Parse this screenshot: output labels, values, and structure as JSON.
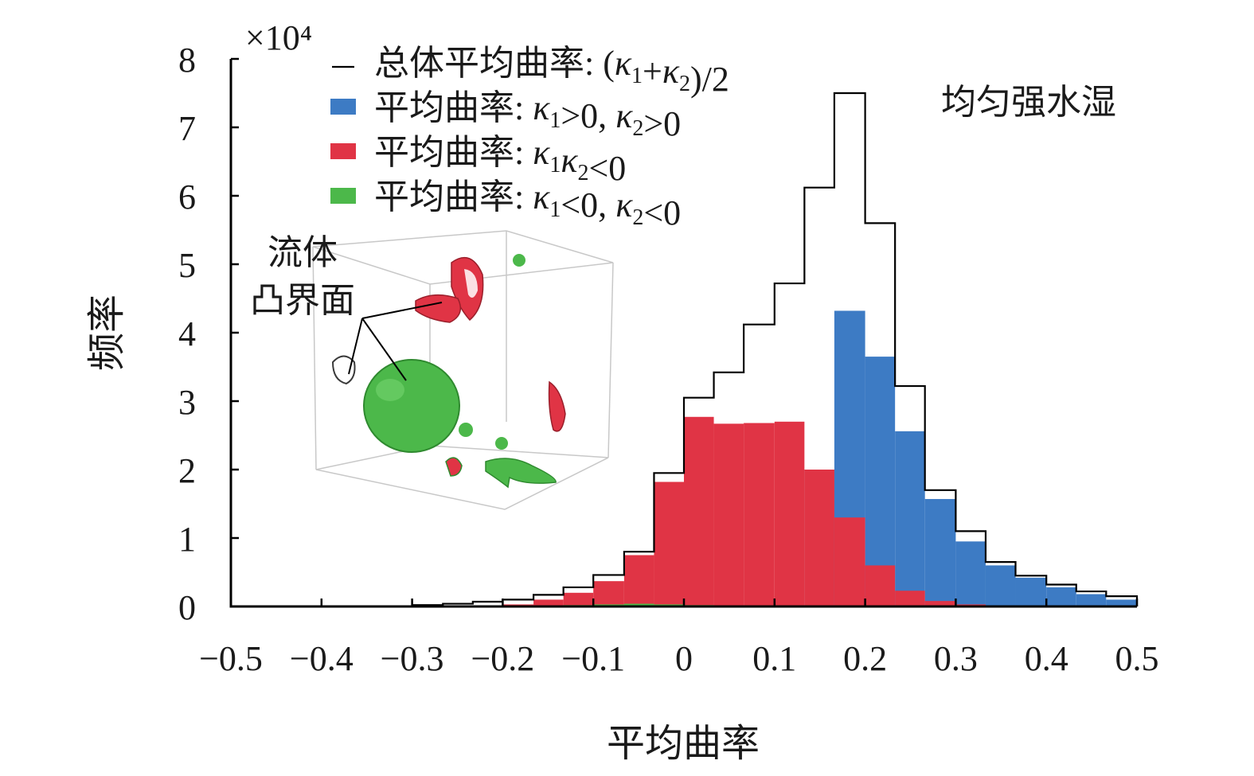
{
  "chart_data": {
    "type": "histogram",
    "xlabel": "平均曲率",
    "ylabel": "频率",
    "y_scale_label": "×10⁴",
    "xlim": [
      -0.5,
      0.5
    ],
    "ylim": [
      0,
      8
    ],
    "y_ticks": [
      0,
      1,
      2,
      3,
      4,
      5,
      6,
      7,
      8
    ],
    "y_tick_labels": [
      "0",
      "1",
      "2",
      "3",
      "4",
      "5",
      "6",
      "7",
      "8"
    ],
    "x_ticks": [
      -0.5,
      -0.4,
      -0.3,
      -0.2,
      -0.1,
      0,
      0.1,
      0.2,
      0.3,
      0.4,
      0.5
    ],
    "x_tick_labels": [
      "−0.5",
      "−0.4",
      "−0.3",
      "−0.2",
      "−0.1",
      "0",
      "0.1",
      "0.2",
      "0.3",
      "0.4",
      "0.5"
    ],
    "bin_edges": [
      -0.5,
      -0.466,
      -0.433,
      -0.4,
      -0.366,
      -0.333,
      -0.3,
      -0.266,
      -0.233,
      -0.2,
      -0.166,
      -0.133,
      -0.1,
      -0.066,
      -0.033,
      0,
      0.033,
      0.066,
      0.1,
      0.133,
      0.166,
      0.2,
      0.233,
      0.266,
      0.3,
      0.333,
      0.366,
      0.4,
      0.433,
      0.466,
      0.5
    ],
    "series": [
      {
        "name": "总体平均曲率: (κ1+κ2)/2",
        "color": "#000000",
        "style": "step",
        "values": [
          0,
          0,
          0,
          0,
          0,
          0,
          0.02,
          0.04,
          0.07,
          0.1,
          0.17,
          0.28,
          0.46,
          0.8,
          1.95,
          3.05,
          3.42,
          4.12,
          4.72,
          6.12,
          7.5,
          5.6,
          3.22,
          1.7,
          1.1,
          0.65,
          0.45,
          0.32,
          0.22,
          0.15
        ]
      },
      {
        "name": "平均曲率: κ1>0, κ2>0",
        "color": "#3d7bc4",
        "style": "filled",
        "values": [
          0,
          0,
          0,
          0,
          0,
          0,
          0,
          0,
          0,
          0,
          0,
          0,
          0,
          0,
          0,
          0,
          0,
          0,
          0,
          2.0,
          4.32,
          3.65,
          2.56,
          1.57,
          0.95,
          0.6,
          0.42,
          0.28,
          0.18,
          0.1
        ]
      },
      {
        "name": "平均曲率: κ1κ2<0",
        "color": "#e03445",
        "style": "filled",
        "values": [
          0,
          0,
          0,
          0,
          0,
          0,
          0,
          0,
          0,
          0.03,
          0.1,
          0.2,
          0.37,
          0.75,
          1.82,
          2.77,
          2.67,
          2.68,
          2.7,
          2.0,
          1.3,
          0.6,
          0.23,
          0.08,
          0.03,
          0.01,
          0,
          0,
          0,
          0
        ]
      },
      {
        "name": "平均曲率: κ1<0, κ2<0",
        "color": "#4cb84a",
        "style": "filled",
        "values": [
          0,
          0,
          0,
          0,
          0,
          0,
          0,
          0,
          0,
          0,
          0.01,
          0.02,
          0.03,
          0.04,
          0.03,
          0.02,
          0.01,
          0,
          0,
          0,
          0,
          0,
          0,
          0,
          0,
          0,
          0,
          0,
          0,
          0
        ]
      }
    ],
    "legend": {
      "placement": "top-left",
      "entries": [
        {
          "symbol": "line",
          "parts": [
            "总体平均曲率: (",
            "κ",
            "1",
            "+",
            "κ",
            "2",
            ")/2"
          ]
        },
        {
          "symbol": "box",
          "parts": [
            "平均曲率: ",
            "κ",
            "1",
            ">0, ",
            "κ",
            "2",
            ">0"
          ]
        },
        {
          "symbol": "box",
          "parts": [
            "平均曲率: ",
            "κ",
            "1",
            "κ",
            "2",
            "<0"
          ]
        },
        {
          "symbol": "box",
          "parts": [
            "平均曲率: ",
            "κ",
            "1",
            "<0, ",
            "κ",
            "2",
            "<0"
          ]
        }
      ]
    },
    "annotation_top_right": "均匀强水湿",
    "inset": {
      "label_line1": "流体",
      "label_line2": "凸界面"
    }
  }
}
